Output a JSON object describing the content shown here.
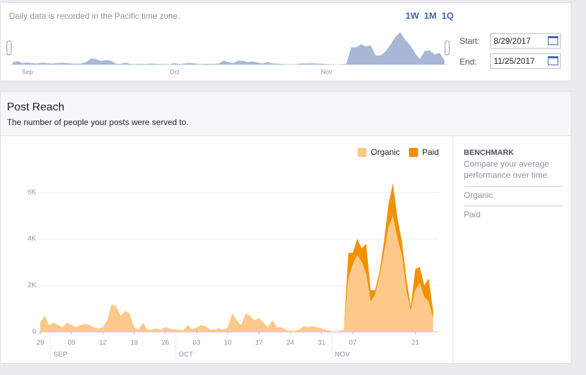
{
  "header": {
    "note": "Daily data is recorded in the Pacific time zone.",
    "ranges": [
      "1W",
      "1M",
      "1Q"
    ],
    "start_label": "Start:",
    "start": "8/29/2017",
    "end_label": "End:",
    "end": "11/25/2017",
    "overview_months": [
      {
        "label": "Sep",
        "index": 3
      },
      {
        "label": "Oct",
        "index": 33
      },
      {
        "label": "Nov",
        "index": 64
      }
    ]
  },
  "panel": {
    "title": "Post Reach",
    "subtitle": "The number of people your posts were served to."
  },
  "chart_data": {
    "type": "area",
    "stacked": true,
    "categories": [
      "29",
      null,
      null,
      null,
      null,
      null,
      null,
      "05",
      null,
      null,
      null,
      null,
      null,
      null,
      "12",
      null,
      null,
      null,
      null,
      null,
      null,
      "19",
      null,
      null,
      null,
      null,
      null,
      null,
      "26",
      null,
      null,
      null,
      null,
      null,
      null,
      "03",
      null,
      null,
      null,
      null,
      null,
      null,
      "10",
      null,
      null,
      null,
      null,
      null,
      null,
      "17",
      null,
      null,
      null,
      null,
      null,
      null,
      "24",
      null,
      null,
      null,
      null,
      null,
      null,
      "31",
      null,
      null,
      null,
      null,
      null,
      null,
      "07",
      null,
      null,
      null,
      null,
      null,
      null,
      null,
      null,
      null,
      null,
      null,
      null,
      null,
      "21",
      null,
      null,
      null,
      null
    ],
    "months": [
      {
        "label": "SEP",
        "index": 7
      },
      {
        "label": "OCT",
        "index": 35
      },
      {
        "label": "NOV",
        "index": 70
      }
    ],
    "series": [
      {
        "name": "Organic",
        "color": "#fdc98a",
        "values": [
          400,
          700,
          300,
          400,
          300,
          200,
          400,
          300,
          200,
          300,
          350,
          300,
          200,
          150,
          200,
          500,
          1200,
          1100,
          700,
          900,
          800,
          200,
          100,
          400,
          100,
          100,
          150,
          100,
          200,
          150,
          100,
          100,
          50,
          300,
          100,
          200,
          300,
          250,
          100,
          100,
          150,
          100,
          200,
          800,
          500,
          300,
          800,
          700,
          500,
          600,
          400,
          200,
          500,
          200,
          200,
          100,
          50,
          50,
          100,
          250,
          200,
          250,
          200,
          150,
          100,
          50,
          0,
          50,
          100,
          2300,
          2900,
          3300,
          3000,
          2500,
          1300,
          1600,
          2400,
          3400,
          4500,
          5000,
          4000,
          3300,
          1800,
          900,
          1800,
          2100,
          1500,
          1300,
          600
        ]
      },
      {
        "name": "Paid",
        "color": "#f29100",
        "values": [
          0,
          0,
          0,
          0,
          0,
          0,
          0,
          0,
          0,
          0,
          0,
          0,
          0,
          0,
          0,
          0,
          0,
          0,
          0,
          0,
          0,
          0,
          0,
          0,
          0,
          0,
          0,
          0,
          0,
          0,
          0,
          0,
          0,
          0,
          0,
          0,
          0,
          0,
          0,
          0,
          0,
          0,
          0,
          0,
          0,
          0,
          0,
          0,
          0,
          0,
          0,
          0,
          0,
          0,
          0,
          0,
          0,
          0,
          0,
          0,
          0,
          0,
          0,
          0,
          0,
          0,
          0,
          0,
          0,
          1100,
          500,
          700,
          600,
          1300,
          500,
          200,
          200,
          500,
          1000,
          1400,
          900,
          600,
          500,
          200,
          900,
          700,
          500,
          1000,
          300
        ]
      }
    ],
    "ylim": [
      0,
      6600
    ],
    "yticks": [
      0,
      {
        "value": 2000,
        "label": "2K"
      },
      {
        "value": 4000,
        "label": "4K"
      },
      {
        "value": 6000,
        "label": "6K"
      }
    ],
    "grid": true
  },
  "benchmark": {
    "title": "BENCHMARK",
    "text": "Compare your average performance over time.",
    "items": [
      "Organic",
      "Paid"
    ]
  }
}
